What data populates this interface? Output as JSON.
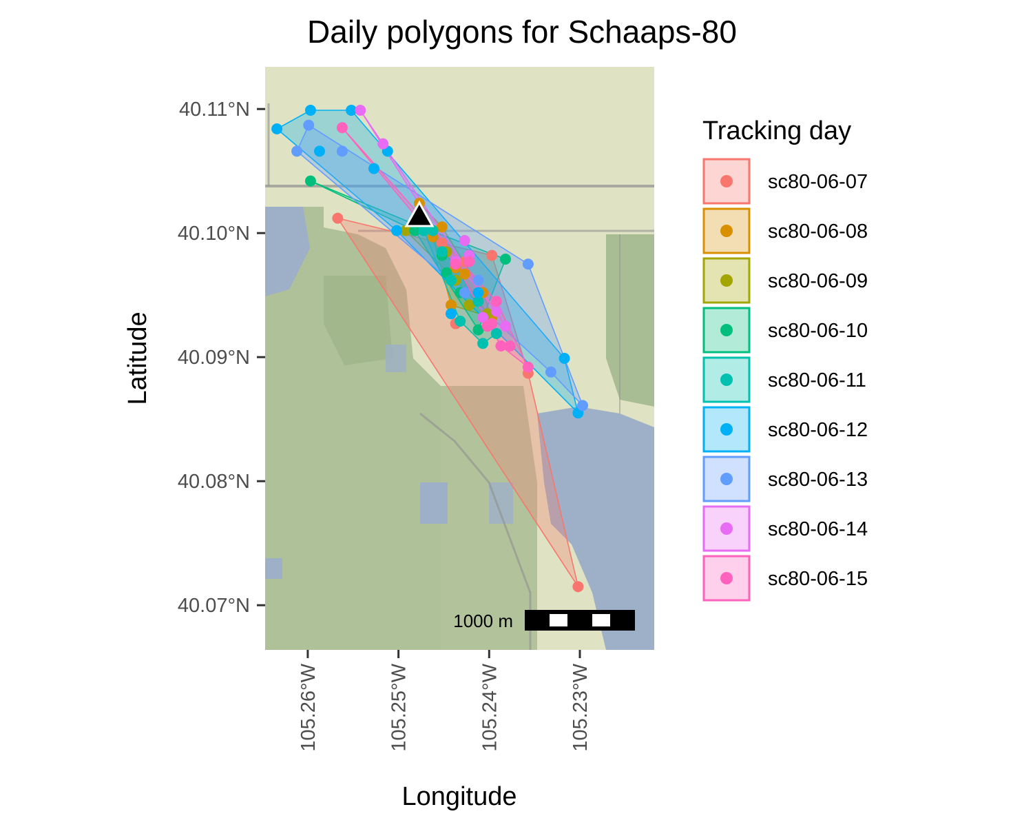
{
  "chart_data": {
    "type": "scatter",
    "title": "Daily polygons for Schaaps-80",
    "xlabel": "Longitude",
    "ylabel": "Latitude",
    "xlim": [
      -105.2647,
      -105.2218
    ],
    "ylim": [
      40.0664,
      40.1134
    ],
    "x_ticks": [
      {
        "value": -105.26,
        "label": "105.26°W"
      },
      {
        "value": -105.25,
        "label": "105.25°W"
      },
      {
        "value": -105.24,
        "label": "105.24°W"
      },
      {
        "value": -105.23,
        "label": "105.23°W"
      }
    ],
    "y_ticks": [
      {
        "value": 40.11,
        "label": "40.11°N"
      },
      {
        "value": 40.1,
        "label": "40.10°N"
      },
      {
        "value": 40.09,
        "label": "40.09°N"
      },
      {
        "value": 40.08,
        "label": "40.08°N"
      },
      {
        "value": 40.07,
        "label": "40.07°N"
      }
    ],
    "basemap": "terrain map background",
    "legend": {
      "title": "Tracking day",
      "position": "right"
    },
    "scalebar": {
      "label": "1000 m",
      "position": "bottom-right"
    },
    "marker": {
      "shape": "triangle",
      "color": "#000000",
      "lon": -105.2477,
      "lat": 40.1014
    },
    "series": [
      {
        "name": "sc80-06-07",
        "color": "#F8766D",
        "points": [
          [
            -105.2567,
            40.1012
          ],
          [
            -105.2427,
            40.0977
          ],
          [
            -105.2397,
            40.0982
          ],
          [
            -105.2472,
            40.1002
          ],
          [
            -105.2357,
            40.0887
          ],
          [
            -105.2302,
            40.0715
          ],
          [
            -105.2437,
            40.0927
          ],
          [
            -105.2452,
            40.0992
          ]
        ],
        "hull": [
          [
            -105.2567,
            40.1012
          ],
          [
            -105.2397,
            40.0982
          ],
          [
            -105.2357,
            40.0887
          ],
          [
            -105.2302,
            40.0715
          ]
        ]
      },
      {
        "name": "sc80-06-08",
        "color": "#D89000",
        "points": [
          [
            -105.2477,
            40.1024
          ],
          [
            -105.2462,
            40.0997
          ],
          [
            -105.2452,
            40.1005
          ],
          [
            -105.2407,
            40.0952
          ],
          [
            -105.2427,
            40.0967
          ],
          [
            -105.2397,
            40.0932
          ],
          [
            -105.2437,
            40.0972
          ],
          [
            -105.2442,
            40.0942
          ]
        ],
        "hull": [
          [
            -105.2477,
            40.1024
          ],
          [
            -105.2452,
            40.1005
          ],
          [
            -105.2407,
            40.0952
          ],
          [
            -105.2397,
            40.0932
          ],
          [
            -105.2442,
            40.0942
          ],
          [
            -105.2462,
            40.0997
          ]
        ]
      },
      {
        "name": "sc80-06-09",
        "color": "#A3A500",
        "points": [
          [
            -105.2492,
            40.1002
          ],
          [
            -105.2437,
            40.0962
          ],
          [
            -105.2402,
            40.0935
          ],
          [
            -105.2467,
            40.1004
          ],
          [
            -105.2422,
            40.0942
          ],
          [
            -105.2447,
            40.0985
          ]
        ],
        "hull": [
          [
            -105.2492,
            40.1002
          ],
          [
            -105.2467,
            40.1004
          ],
          [
            -105.2402,
            40.0935
          ],
          [
            -105.2437,
            40.0962
          ]
        ]
      },
      {
        "name": "sc80-06-10",
        "color": "#00BF7D",
        "points": [
          [
            -105.2597,
            40.1042
          ],
          [
            -105.2482,
            40.1002
          ],
          [
            -105.2452,
            40.0982
          ],
          [
            -105.2382,
            40.0979
          ],
          [
            -105.2412,
            40.0922
          ],
          [
            -105.2447,
            40.0968
          ],
          [
            -105.2432,
            40.0952
          ],
          [
            -105.2472,
            40.1004
          ]
        ],
        "hull": [
          [
            -105.2597,
            40.1042
          ],
          [
            -105.2472,
            40.1004
          ],
          [
            -105.2382,
            40.0979
          ],
          [
            -105.2412,
            40.0922
          ],
          [
            -105.2482,
            40.1002
          ]
        ]
      },
      {
        "name": "sc80-06-11",
        "color": "#00C0AF",
        "points": [
          [
            -105.2472,
            40.1002
          ],
          [
            -105.2432,
            40.0929
          ],
          [
            -105.2407,
            40.0911
          ],
          [
            -105.2392,
            40.0919
          ],
          [
            -105.2442,
            40.0962
          ],
          [
            -105.2462,
            40.1002
          ],
          [
            -105.2452,
            40.0985
          ],
          [
            -105.2412,
            40.0945
          ]
        ],
        "hull": [
          [
            -105.2472,
            40.1002
          ],
          [
            -105.2462,
            40.1002
          ],
          [
            -105.2392,
            40.0919
          ],
          [
            -105.2407,
            40.0911
          ],
          [
            -105.2432,
            40.0929
          ]
        ]
      },
      {
        "name": "sc80-06-12",
        "color": "#00B0F6",
        "points": [
          [
            -105.2634,
            40.1084
          ],
          [
            -105.2597,
            40.1099
          ],
          [
            -105.2552,
            40.1099
          ],
          [
            -105.2587,
            40.1066
          ],
          [
            -105.2527,
            40.1052
          ],
          [
            -105.2502,
            40.1002
          ],
          [
            -105.2442,
            40.0935
          ],
          [
            -105.2317,
            40.0899
          ],
          [
            -105.2302,
            40.0855
          ],
          [
            -105.2412,
            40.0952
          ],
          [
            -105.2512,
            40.1066
          ]
        ],
        "hull": [
          [
            -105.2634,
            40.1084
          ],
          [
            -105.2597,
            40.1099
          ],
          [
            -105.2552,
            40.1099
          ],
          [
            -105.2317,
            40.0899
          ],
          [
            -105.2302,
            40.0855
          ],
          [
            -105.2502,
            40.1002
          ]
        ]
      },
      {
        "name": "sc80-06-13",
        "color": "#619CFF",
        "points": [
          [
            -105.2612,
            40.1066
          ],
          [
            -105.2599,
            40.1087
          ],
          [
            -105.2562,
            40.1066
          ],
          [
            -105.2357,
            40.0975
          ],
          [
            -105.2332,
            40.0888
          ],
          [
            -105.2297,
            40.0861
          ],
          [
            -105.2412,
            40.0962
          ],
          [
            -105.2427,
            40.0952
          ]
        ],
        "hull": [
          [
            -105.2612,
            40.1066
          ],
          [
            -105.2599,
            40.1087
          ],
          [
            -105.2357,
            40.0975
          ],
          [
            -105.2297,
            40.0861
          ],
          [
            -105.2332,
            40.0888
          ],
          [
            -105.2427,
            40.0952
          ]
        ]
      },
      {
        "name": "sc80-06-14",
        "color": "#E76BF3",
        "points": [
          [
            -105.2542,
            40.1099
          ],
          [
            -105.2422,
            40.0982
          ],
          [
            -105.2427,
            40.0994
          ],
          [
            -105.2392,
            40.0937
          ],
          [
            -105.2382,
            40.0925
          ],
          [
            -105.2407,
            40.0932
          ],
          [
            -105.2437,
            40.0977
          ],
          [
            -105.2517,
            40.1072
          ]
        ],
        "hull": [
          [
            -105.2542,
            40.1099
          ],
          [
            -105.2382,
            40.0925
          ],
          [
            -105.2392,
            40.0937
          ],
          [
            -105.2437,
            40.0977
          ]
        ]
      },
      {
        "name": "sc80-06-15",
        "color": "#FF62BC",
        "points": [
          [
            -105.2562,
            40.1085
          ],
          [
            -105.2422,
            40.0977
          ],
          [
            -105.2392,
            40.0945
          ],
          [
            -105.2387,
            40.0909
          ],
          [
            -105.2357,
            40.0892
          ],
          [
            -105.2397,
            40.0927
          ],
          [
            -105.2437,
            40.0975
          ],
          [
            -105.2377,
            40.0909
          ],
          [
            -105.2402,
            40.0925
          ]
        ],
        "hull": [
          [
            -105.2562,
            40.1085
          ],
          [
            -105.2392,
            40.0945
          ],
          [
            -105.2357,
            40.0892
          ],
          [
            -105.2387,
            40.0909
          ],
          [
            -105.2437,
            40.0975
          ]
        ]
      }
    ]
  }
}
